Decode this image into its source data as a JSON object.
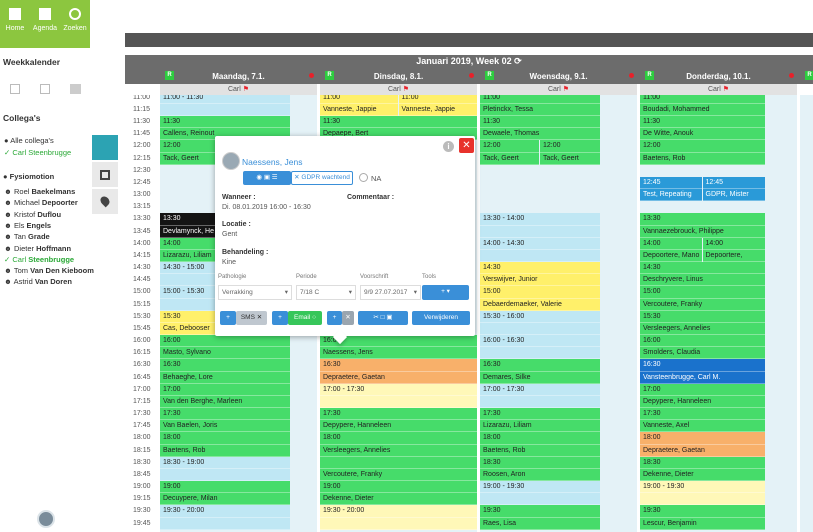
{
  "nav": {
    "items": [
      "Home",
      "Agenda",
      "Zoeken"
    ]
  },
  "sidebar": {
    "week_title": "Weekkalender",
    "colleagues_title": "Collega's",
    "all": "Alle collega's",
    "me": "Carl Steenbrugge",
    "group": "Fysiomotion",
    "members": [
      {
        "first": "Roel",
        "last": "Baekelmans"
      },
      {
        "first": "Michael",
        "last": "Depoorter"
      },
      {
        "first": "Kristof",
        "last": "Duflou"
      },
      {
        "first": "Els",
        "last": "Engels"
      },
      {
        "first": "Tan",
        "last": "Grade"
      },
      {
        "first": "Dieter",
        "last": "Hoffmann"
      },
      {
        "first": "Carl",
        "last": "Steenbrugge",
        "active": true
      },
      {
        "first": "Tom",
        "last": "Van Den Kieboom"
      },
      {
        "first": "Astrid",
        "last": "Van Doren"
      }
    ]
  },
  "calendar": {
    "title": "Januari 2019, Week 02",
    "badge": "R",
    "resource": "Carl",
    "palette": {
      "green": "#46dc6a",
      "lightblue": "#bfe7f4",
      "yellow": "#fff06a",
      "paleyellow": "#fff8b8",
      "orange": "#f8b06a",
      "black": "#141414",
      "blue": "#2a9ad8",
      "darkblue": "#1a72cc"
    },
    "times": [
      "11:00",
      "11:15",
      "11:30",
      "11:45",
      "12:00",
      "12:15",
      "12:30",
      "12:45",
      "13:00",
      "13:15",
      "13:30",
      "13:45",
      "14:00",
      "14:15",
      "14:30",
      "14:45",
      "15:00",
      "15:15",
      "15:30",
      "15:45",
      "16:00",
      "16:15",
      "16:30",
      "16:45",
      "17:00",
      "17:15",
      "17:30",
      "17:45",
      "18:00",
      "18:15",
      "18:30",
      "18:45",
      "19:00",
      "19:15",
      "19:30",
      "19:45"
    ],
    "days": [
      {
        "label": "Maandag, 7.1.",
        "cells": [
          {
            "text": "11:00 - 11:30",
            "color": "lightblue"
          },
          {
            "color": "lightblue"
          },
          {
            "text": "11:30",
            "color": "green"
          },
          {
            "text": "Callens, Reinout",
            "color": "green"
          },
          {
            "text": "12:00",
            "color": "green"
          },
          {
            "text": "Tack, Geert",
            "color": "green"
          },
          null,
          null,
          null,
          null,
          {
            "text": "13:30",
            "color": "black"
          },
          {
            "text": "Devlamynck, He",
            "color": "black"
          },
          {
            "text": "14:00",
            "color": "green"
          },
          {
            "text": "Lizarazu, Liliam",
            "color": "green"
          },
          {
            "text": "14:30 - 15:00",
            "color": "lightblue"
          },
          {
            "color": "lightblue"
          },
          {
            "text": "15:00 - 15:30",
            "color": "lightblue"
          },
          {
            "color": "lightblue"
          },
          {
            "text": "15:30",
            "color": "yellow"
          },
          {
            "text": "Cas, Debooser",
            "color": "yellow"
          },
          {
            "text": "16:00",
            "color": "green"
          },
          {
            "text": "Masto, Sylvano",
            "color": "green"
          },
          {
            "text": "16:30",
            "color": "green"
          },
          {
            "text": "Behaeghe, Lore",
            "color": "green"
          },
          {
            "text": "17:00",
            "color": "green"
          },
          {
            "text": "Van den Berghe, Marleen",
            "color": "green"
          },
          {
            "text": "17:30",
            "color": "green"
          },
          {
            "text": "Van Baelen, Joris",
            "color": "green"
          },
          {
            "text": "18:00",
            "color": "green"
          },
          {
            "text": "Baetens, Rob",
            "color": "green"
          },
          {
            "text": "18:30 - 19:00",
            "color": "lightblue"
          },
          {
            "color": "lightblue"
          },
          {
            "text": "19:00",
            "color": "green"
          },
          {
            "text": "Decuypere, Milan",
            "color": "green"
          },
          {
            "text": "19:30 - 20:00",
            "color": "lightblue"
          },
          {
            "color": "lightblue"
          }
        ]
      },
      {
        "label": "Dinsdag, 8.1.",
        "cells": [
          {
            "split": [
              {
                "text": "11:00",
                "color": "yellow"
              },
              {
                "text": "11:00",
                "color": "yellow"
              }
            ]
          },
          {
            "split": [
              {
                "text": "Vanneste, Jappie",
                "color": "yellow"
              },
              {
                "text": "Vanneste, Jappie",
                "color": "yellow"
              }
            ]
          },
          {
            "text": "11:30",
            "color": "green"
          },
          {
            "text": "Depaepe, Bert",
            "color": "green"
          },
          null,
          null,
          null,
          null,
          null,
          null,
          null,
          null,
          null,
          null,
          null,
          null,
          null,
          null,
          null,
          null,
          {
            "text": "16:00",
            "color": "green"
          },
          {
            "text": "Naessens, Jens",
            "color": "green"
          },
          {
            "text": "16:30",
            "color": "orange"
          },
          {
            "text": "Depraetere, Gaetan",
            "color": "orange"
          },
          {
            "text": "17:00 - 17:30",
            "color": "paleyellow"
          },
          {
            "color": "paleyellow"
          },
          {
            "text": "17:30",
            "color": "green"
          },
          {
            "text": "Depypere, Hanneleen",
            "color": "green"
          },
          {
            "text": "18:00",
            "color": "green"
          },
          {
            "text": "Versleegers, Annelies",
            "color": "green"
          },
          {
            "color": "green"
          },
          {
            "text": "Vercoutere, Franky",
            "color": "green"
          },
          {
            "text": "19:00",
            "color": "green"
          },
          {
            "text": "Dekenne, Dieter",
            "color": "green"
          },
          {
            "text": "19:30 - 20:00",
            "color": "paleyellow"
          },
          {
            "color": "paleyellow"
          }
        ]
      },
      {
        "label": "Woensdag, 9.1.",
        "cells": [
          {
            "text": "11:00",
            "color": "green"
          },
          {
            "text": "Pletinckx, Tessa",
            "color": "green"
          },
          {
            "text": "11:30",
            "color": "green"
          },
          {
            "text": "Dewaele, Thomas",
            "color": "green"
          },
          {
            "split": [
              {
                "text": "12:00",
                "color": "green"
              },
              {
                "text": "12:00",
                "color": "green"
              }
            ]
          },
          {
            "split": [
              {
                "text": "Tack, Geert",
                "color": "green"
              },
              {
                "text": "Tack, Geert",
                "color": "green"
              }
            ]
          },
          null,
          null,
          null,
          null,
          {
            "text": "13:30 - 14:00",
            "color": "lightblue"
          },
          {
            "color": "lightblue"
          },
          {
            "text": "14:00 - 14:30",
            "color": "lightblue"
          },
          {
            "color": "lightblue"
          },
          {
            "text": "14:30",
            "color": "yellow"
          },
          {
            "text": "Verswijver, Junior",
            "color": "yellow"
          },
          {
            "text": "15:00",
            "color": "yellow"
          },
          {
            "text": "Debaerdemaeker, Valerie",
            "color": "yellow"
          },
          {
            "text": "15:30 - 16:00",
            "color": "lightblue"
          },
          {
            "color": "lightblue"
          },
          {
            "text": "16:00 - 16:30",
            "color": "lightblue"
          },
          {
            "color": "lightblue"
          },
          {
            "text": "16:30",
            "color": "green"
          },
          {
            "text": "Demares, Silke",
            "color": "green"
          },
          {
            "text": "17:00 - 17:30",
            "color": "lightblue"
          },
          {
            "color": "lightblue"
          },
          {
            "text": "17:30",
            "color": "green"
          },
          {
            "text": "Lizarazu, Liliam",
            "color": "green"
          },
          {
            "text": "18:00",
            "color": "green"
          },
          {
            "text": "Baetens, Rob",
            "color": "green"
          },
          {
            "text": "18:30",
            "color": "green"
          },
          {
            "text": "Roosen, Aron",
            "color": "green"
          },
          {
            "text": "19:00 - 19:30",
            "color": "lightblue"
          },
          {
            "color": "lightblue"
          },
          {
            "text": "19:30",
            "color": "green"
          },
          {
            "text": "Raes, Lisa",
            "color": "green"
          }
        ]
      },
      {
        "label": "Donderdag, 10.1.",
        "cells": [
          {
            "text": "11:00",
            "color": "green"
          },
          {
            "text": "Boudadi, Mohammed",
            "color": "green"
          },
          {
            "text": "11:30",
            "color": "green"
          },
          {
            "text": "De Witte, Anouk",
            "color": "green"
          },
          {
            "text": "12:00",
            "color": "green"
          },
          {
            "text": "Baetens, Rob",
            "color": "green"
          },
          null,
          {
            "split": [
              {
                "text": "12:45",
                "color": "blue"
              },
              {
                "text": "12:45",
                "color": "blue"
              }
            ]
          },
          {
            "split": [
              {
                "text": "Test, Repeating",
                "color": "blue"
              },
              {
                "text": "GDPR, Mister",
                "color": "blue"
              }
            ]
          },
          null,
          {
            "text": "13:30",
            "color": "green"
          },
          {
            "text": "Vannaezebrouck, Philippe",
            "color": "green"
          },
          {
            "split": [
              {
                "text": "14:00",
                "color": "green"
              },
              {
                "text": "14:00",
                "color": "green"
              }
            ]
          },
          {
            "split": [
              {
                "text": "Depoortere, Mano",
                "color": "green"
              },
              {
                "text": "Depoortere,",
                "color": "green"
              }
            ]
          },
          {
            "text": "14:30",
            "color": "green"
          },
          {
            "text": "Deschryvere, Linus",
            "color": "green"
          },
          {
            "text": "15:00",
            "color": "green"
          },
          {
            "text": "Vercoutere, Franky",
            "color": "green"
          },
          {
            "text": "15:30",
            "color": "green"
          },
          {
            "text": "Versleegers, Annelies",
            "color": "green"
          },
          {
            "text": "16:00",
            "color": "green"
          },
          {
            "text": "Smolders, Claudia",
            "color": "green"
          },
          {
            "text": "16:30",
            "color": "darkblue"
          },
          {
            "text": "Vansteenbrugge, Carl M.",
            "color": "darkblue"
          },
          {
            "text": "17:00",
            "color": "green"
          },
          {
            "text": "Depypere, Hanneleen",
            "color": "green"
          },
          {
            "text": "17:30",
            "color": "green"
          },
          {
            "text": "Vanneste, Axel",
            "color": "green"
          },
          {
            "text": "18:00",
            "color": "orange"
          },
          {
            "text": "Depraetere, Gaetan",
            "color": "orange"
          },
          {
            "text": "18:30",
            "color": "green"
          },
          {
            "text": "Dekenne, Dieter",
            "color": "green"
          },
          {
            "text": "19:00 - 19:30",
            "color": "paleyellow"
          },
          {
            "color": "paleyellow"
          },
          {
            "text": "19:30",
            "color": "green"
          },
          {
            "text": "Lescur, Benjamin",
            "color": "green"
          }
        ]
      }
    ]
  },
  "popup": {
    "name": "Naessens, Jens",
    "gdpr": "GDPR wachtend",
    "na": "NA",
    "when_label": "Wanneer :",
    "when": "Di. 08.01.2019 16:00 - 16:30",
    "comment_label": "Commentaar :",
    "location_label": "Locatie :",
    "location": "Gent",
    "treatment_label": "Behandeling :",
    "treatment": "Kine",
    "fields": [
      {
        "label": "Pathologie",
        "value": "Verrakking"
      },
      {
        "label": "Periode",
        "value": "7/18 C"
      },
      {
        "label": "Voorschrift",
        "value": "9/9 27.07.2017"
      },
      {
        "label": "Tools"
      }
    ],
    "sms": "SMS",
    "email": "Email",
    "delete": "Verwijderen"
  }
}
